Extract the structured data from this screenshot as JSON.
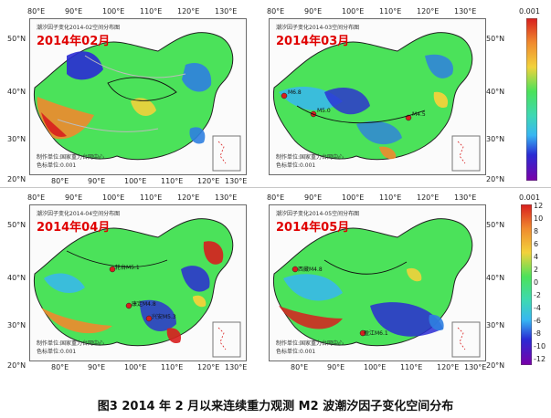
{
  "caption": "图3   2014 年 2 月以来连续重力观测 M2 波潮汐因子变化空间分布",
  "colors": {
    "date_red": "#e00000",
    "scale": [
      "#7a00a8",
      "#2a2bd4",
      "#2f7fe0",
      "#37b6f2",
      "#3ed8b4",
      "#4be25a",
      "#c7e64b",
      "#f2d23b",
      "#f08a2e",
      "#d81e1e"
    ]
  },
  "colorbars": [
    {
      "top_label": "0.001",
      "ticks": []
    },
    {
      "top_label": "0.001",
      "ticks": [
        "12",
        "10",
        "8",
        "6",
        "4",
        "2",
        "0",
        "-2",
        "-4",
        "-6",
        "-8",
        "-10",
        "-12"
      ]
    }
  ],
  "panels": [
    {
      "date": "2014年02月",
      "title": "潮汐因子变化2014-02空间分布图",
      "credit_lines": [
        "制作单位:国家重力台网中心",
        "色标单位:0.001"
      ],
      "lon_top": [
        "80°E",
        "90°E",
        "100°E",
        "110°E",
        "120°E",
        "130°E"
      ],
      "lon_bottom": [
        "80°E",
        "90°E",
        "100°E",
        "110°E",
        "120°E",
        "130°E"
      ],
      "lat_left": [
        "50°N",
        "40°N",
        "30°N",
        "20°N"
      ],
      "lat_right": [],
      "quakes": []
    },
    {
      "date": "2014年03月",
      "title": "潮汐因子变化2014-03空间分布图",
      "credit_lines": [
        "制作单位:国家重力台网中心",
        "色标单位:0.001"
      ],
      "lon_top": [
        "80°E",
        "90°E",
        "100°E",
        "110°E",
        "120°E",
        "130°E"
      ],
      "lon_bottom": [],
      "lat_left": [],
      "lat_right": [
        "50°N",
        "40°N",
        "30°N",
        "20°N"
      ],
      "quakes": [
        {
          "label": "M6.8"
        },
        {
          "label": "M5.0"
        },
        {
          "label": "M4.5"
        }
      ]
    },
    {
      "date": "2014年04月",
      "title": "潮汐因子变化2014-04空间分布图",
      "credit_lines": [
        "制作单位:国家重力台网中心",
        "色标单位:0.001"
      ],
      "lon_top": [
        "80°E",
        "90°E",
        "100°E",
        "110°E",
        "120°E",
        "130°E"
      ],
      "lon_bottom": [
        "80°E",
        "90°E",
        "100°E",
        "110°E",
        "120°E",
        "130°E"
      ],
      "lat_left": [
        "50°N",
        "40°N",
        "30°N",
        "20°N"
      ],
      "lat_right": [],
      "quakes": [
        {
          "label": "轮台M5.1"
        },
        {
          "label": "康定M4.8"
        },
        {
          "label": "兴安M5.3"
        }
      ]
    },
    {
      "date": "2014年05月",
      "title": "潮汐因子变化2014-05空间分布图",
      "credit_lines": [
        "制作单位:国家重力台网中心",
        "色标单位:0.001"
      ],
      "lon_top": [
        "80°E",
        "90°E",
        "100°E",
        "110°E",
        "120°E",
        "130°E"
      ],
      "lon_bottom": [
        "80°E",
        "90°E",
        "100°E",
        "110°E",
        "120°E",
        "130°E"
      ],
      "lat_left": [],
      "lat_right": [
        "50°N",
        "40°N",
        "30°N",
        "20°N"
      ],
      "quakes": [
        {
          "label": "西藏M4.8"
        },
        {
          "label": "盈江M6.1"
        }
      ]
    }
  ]
}
